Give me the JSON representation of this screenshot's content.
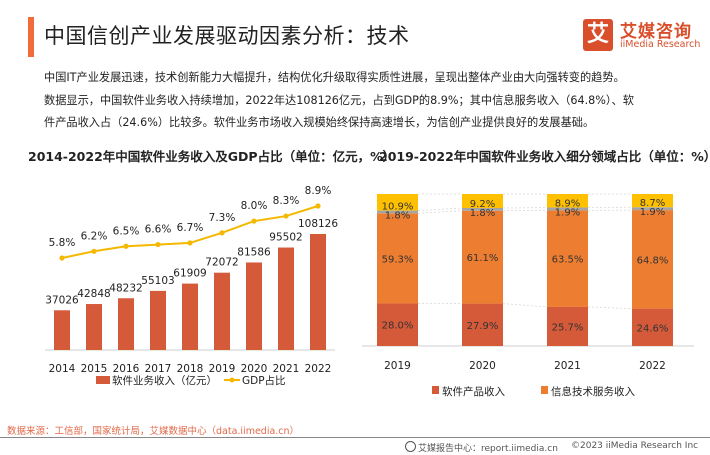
{
  "header": {
    "title": "中国信创产业发展驱动因素分析：技术",
    "accent_color": "#f26b3a",
    "logo": {
      "icon_char": "艾",
      "name_cn": "艾媒咨询",
      "name_en": "iiMedia Research",
      "color": "#d94f2b"
    }
  },
  "intro": {
    "lines": [
      "中国IT产业发展迅速，技术创新能力大幅提升，结构优化升级取得实质性进展，呈现出整体产业由大向强转变的趋势。",
      "数据显示，中国软件业务收入持续增加，2022年达108126亿元，占到GDP的8.9%；其中信息服务收入（64.8%）、软",
      "件产品收入占（24.6%）比较多。软件业务市场收入规模始终保持高速增长，为信创产业提供良好的发展基础。"
    ]
  },
  "chart_data": [
    {
      "type": "bar",
      "title": "2014-2022年中国软件业务收入及GDP占比（单位：亿元，%）",
      "categories": [
        "2014",
        "2015",
        "2016",
        "2017",
        "2018",
        "2019",
        "2020",
        "2021",
        "2022"
      ],
      "series": [
        {
          "name": "软件业务收入（亿元）",
          "type": "bar",
          "color": "#d45a3a",
          "values": [
            37026,
            42848,
            48232,
            55103,
            61909,
            72072,
            81586,
            95502,
            108126
          ],
          "labels": [
            "37026",
            "42848",
            "48232",
            "55103",
            "61909",
            "72072",
            "81586",
            "95502",
            "108126"
          ]
        },
        {
          "name": "GDP占比",
          "type": "line",
          "color": "#f5b800",
          "values": [
            5.8,
            6.2,
            6.5,
            6.6,
            6.7,
            7.3,
            8.0,
            8.3,
            8.9
          ],
          "labels": [
            "5.8%",
            "6.2%",
            "6.5%",
            "6.6%",
            "6.7%",
            "7.3%",
            "8.0%",
            "8.3%",
            "8.9%"
          ]
        }
      ],
      "xlabel": "",
      "ylabel": "",
      "grid": false,
      "legend": "bottom"
    },
    {
      "type": "bar",
      "stacked": true,
      "title": "2019-2022年中国软件业务收入细分领域占比（单位：%）",
      "categories": [
        "2019",
        "2020",
        "2021",
        "2022"
      ],
      "series": [
        {
          "name": "软件产品收入",
          "color": "#d45a3a",
          "values": [
            28.0,
            27.9,
            25.7,
            24.6
          ],
          "labels": [
            "28.0%",
            "27.9%",
            "25.7%",
            "24.6%"
          ],
          "in_legend": true
        },
        {
          "name": "信息技术服务收入",
          "color": "#ed7d31",
          "values": [
            59.3,
            61.1,
            63.5,
            64.8
          ],
          "labels": [
            "59.3%",
            "61.1%",
            "63.5%",
            "64.8%"
          ],
          "in_legend": true
        },
        {
          "name": "",
          "color": "#a5a5a5",
          "values": [
            1.8,
            1.8,
            1.9,
            1.9
          ],
          "labels": [
            "1.8%",
            "1.8%",
            "1.9%",
            "1.9%"
          ],
          "in_legend": false
        },
        {
          "name": "",
          "color": "#ffc000",
          "values": [
            10.9,
            9.2,
            8.9,
            8.7
          ],
          "labels": [
            "10.9%",
            "9.2%",
            "8.9%",
            "8.7%"
          ],
          "in_legend": false
        }
      ],
      "ylim": [
        0,
        100
      ],
      "grid": false,
      "legend": "bottom"
    }
  ],
  "footer": {
    "source": "数据来源：工信部，国家统计局，艾媒数据中心（data.iimedia.cn）",
    "report_center": "艾媒报告中心：report.iimedia.cn",
    "copyright": "©2023  iiMedia Research  Inc"
  }
}
